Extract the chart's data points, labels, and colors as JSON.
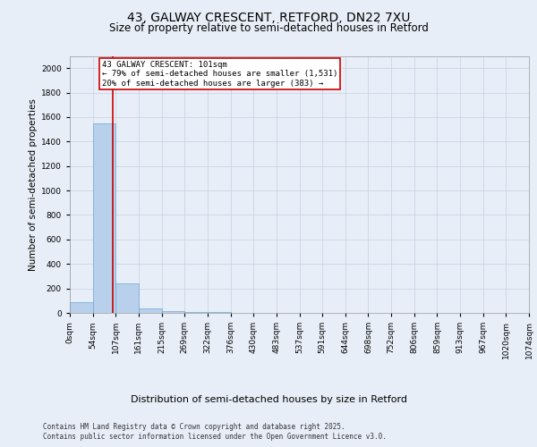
{
  "title1": "43, GALWAY CRESCENT, RETFORD, DN22 7XU",
  "title2": "Size of property relative to semi-detached houses in Retford",
  "xlabel": "Distribution of semi-detached houses by size in Retford",
  "ylabel": "Number of semi-detached properties",
  "bin_edges": [
    0,
    53.7,
    107.4,
    161.1,
    214.8,
    268.5,
    322.2,
    375.9,
    429.6,
    483.3,
    537.0,
    590.7,
    644.4,
    698.1,
    751.8,
    805.5,
    859.2,
    912.9,
    966.6,
    1020.3,
    1074.0
  ],
  "bin_labels": [
    "0sqm",
    "54sqm",
    "107sqm",
    "161sqm",
    "215sqm",
    "269sqm",
    "322sqm",
    "376sqm",
    "430sqm",
    "483sqm",
    "537sqm",
    "591sqm",
    "644sqm",
    "698sqm",
    "752sqm",
    "806sqm",
    "859sqm",
    "913sqm",
    "967sqm",
    "1020sqm",
    "1074sqm"
  ],
  "bar_heights": [
    90,
    1550,
    240,
    40,
    15,
    8,
    5,
    3,
    2,
    2,
    1,
    1,
    1,
    1,
    1,
    1,
    0,
    0,
    0,
    0
  ],
  "bar_color": "#b8d0ec",
  "bar_edge_color": "#6aaad4",
  "property_line_x": 101,
  "property_line_color": "#cc0000",
  "annotation_line1": "43 GALWAY CRESCENT: 101sqm",
  "annotation_line2": "← 79% of semi-detached houses are smaller (1,531)",
  "annotation_line3": "20% of semi-detached houses are larger (383) →",
  "annotation_box_color": "#cc0000",
  "annotation_text_color": "#000000",
  "ylim": [
    0,
    2100
  ],
  "yticks": [
    0,
    200,
    400,
    600,
    800,
    1000,
    1200,
    1400,
    1600,
    1800,
    2000
  ],
  "background_color": "#e8eef8",
  "plot_bg_color": "#e8eef8",
  "footer_line1": "Contains HM Land Registry data © Crown copyright and database right 2025.",
  "footer_line2": "Contains public sector information licensed under the Open Government Licence v3.0.",
  "title1_fontsize": 10,
  "title2_fontsize": 8.5,
  "xlabel_fontsize": 8,
  "ylabel_fontsize": 7.5,
  "tick_fontsize": 6.5,
  "annotation_fontsize": 6.5,
  "footer_fontsize": 5.5,
  "grid_color": "#c8d0e0",
  "spine_color": "#999999"
}
